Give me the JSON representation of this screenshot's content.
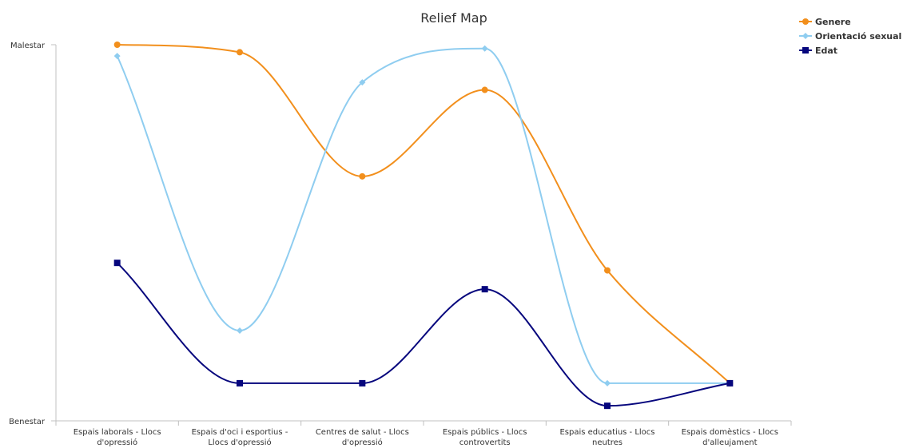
{
  "chart_data": {
    "type": "line",
    "title": "Relief Map",
    "xlabel": "",
    "ylabel": "",
    "categories": [
      [
        "Espais laborals - Llocs",
        "d'opressió"
      ],
      [
        "Espais d'oci i esportius -",
        "Llocs d'opressió"
      ],
      [
        "Centres de salut - Llocs",
        "d'opressió"
      ],
      [
        "Espais públics - Llocs",
        "controvertits"
      ],
      [
        "Espais educatius - Llocs",
        "neutres"
      ],
      [
        "Espais domèstics - Llocs",
        "d'alleujament"
      ]
    ],
    "yticks": [
      {
        "value": 0,
        "label": "Benestar"
      },
      {
        "value": 1,
        "label": "Malestar"
      }
    ],
    "ylim": [
      0,
      1
    ],
    "curve": "smooth",
    "grid": false,
    "legend": "top-right",
    "series": [
      {
        "name": "Genere",
        "color": "#f28f1c",
        "marker": "circle",
        "values": [
          1.0,
          0.98,
          0.65,
          0.88,
          0.4,
          0.1
        ]
      },
      {
        "name": "Orientació sexual",
        "color": "#8fcdf0",
        "marker": "diamond",
        "values": [
          0.97,
          0.24,
          0.9,
          0.99,
          0.1,
          0.1
        ]
      },
      {
        "name": "Edat",
        "color": "#06067d",
        "marker": "square",
        "values": [
          0.42,
          0.1,
          0.1,
          0.35,
          0.04,
          0.1
        ]
      }
    ]
  }
}
